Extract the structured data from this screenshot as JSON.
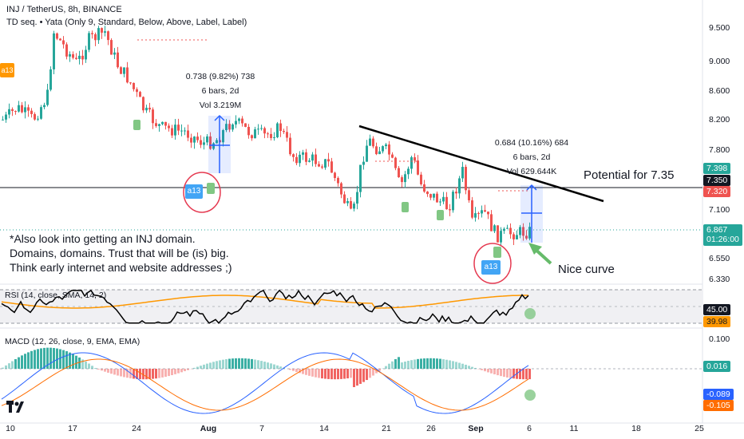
{
  "header": {
    "symbol_line": "INJ / TetherUS, 8h, BINANCE",
    "indicator_line": "TD seq. • Yata (Only 9, Standard, Below, Above, Label, Label)"
  },
  "price_axis": [
    "9.500",
    "9.000",
    "8.600",
    "8.200",
    "7.800",
    "7.350",
    "7.100",
    "6.550",
    "6.330"
  ],
  "price_tags": {
    "green_level": "7.398",
    "black_level": "7.350",
    "red_level": "7.320",
    "current_price": "6.867",
    "countdown": "01:26:00"
  },
  "time_axis": [
    "10",
    "17",
    "24",
    "Aug",
    "7",
    "14",
    "21",
    "26",
    "Sep",
    "6",
    "11",
    "18",
    "25"
  ],
  "measures": {
    "left": {
      "line1": "0.738 (9.82%) 738",
      "line2": "6 bars, 2d",
      "line3": "Vol 3.219M"
    },
    "right": {
      "line1": "0.684 (10.16%) 684",
      "line2": "6 bars, 2d",
      "line3": "Vol 629.644K"
    }
  },
  "annotations": {
    "potential": "Potential for 7.35",
    "nice_curve": "Nice curve",
    "note_line1": "*Also look into getting an INJ domain.",
    "note_line2": "Domains, domains. Trust that will be (is) big.",
    "note_line3": "Think early internet and website addresses ;)"
  },
  "td_labels": {
    "a13": "a13"
  },
  "rsi": {
    "title": "RSI (14, close, SMA, 14, 2)",
    "axis": [
      "45.00",
      "39.98"
    ]
  },
  "macd": {
    "title": "MACD (12, 26, close, 9, EMA, EMA)",
    "axis": [
      "0.100",
      "0.016",
      "-0.089",
      "-0.105"
    ]
  },
  "colors": {
    "up": "#26a69a",
    "down": "#ef5350",
    "trendline": "#000000",
    "rsi_line": "#000000",
    "rsi_ma": "#ff9800",
    "macd_line": "#2962ff",
    "signal_line": "#ff6d00",
    "measure": "#2962ff",
    "td_badge": "#42a5f5",
    "td_green": "#81c784",
    "tv_orange": "#ff9800"
  }
}
